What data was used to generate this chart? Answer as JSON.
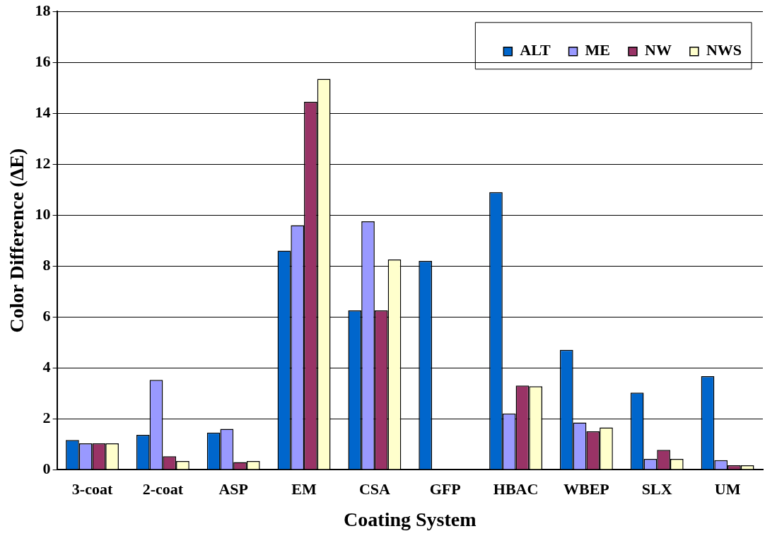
{
  "chart_data": {
    "type": "bar",
    "xlabel": "Coating System",
    "ylabel": "Color Difference (ΔE)",
    "categories": [
      "3-coat",
      "2-coat",
      "ASP",
      "EM",
      "CSA",
      "GFP",
      "HBAC",
      "WBEP",
      "SLX",
      "UM"
    ],
    "series": [
      {
        "name": "ALT",
        "color": "#0066cc",
        "values": [
          1.16,
          1.36,
          1.45,
          8.6,
          6.25,
          8.2,
          10.9,
          4.7,
          3.02,
          3.67
        ]
      },
      {
        "name": "ME",
        "color": "#9999ff",
        "values": [
          1.03,
          3.52,
          1.6,
          9.6,
          9.75,
          0,
          2.2,
          1.85,
          0.42,
          0.37
        ]
      },
      {
        "name": "NW",
        "color": "#993366",
        "values": [
          1.03,
          0.52,
          0.29,
          14.45,
          6.25,
          0,
          3.3,
          1.5,
          0.77,
          0.17
        ]
      },
      {
        "name": "NWS",
        "color": "#ffffcc",
        "values": [
          1.03,
          0.33,
          0.33,
          15.35,
          8.25,
          0,
          3.27,
          1.65,
          0.42,
          0.17
        ]
      }
    ],
    "ylim": [
      0,
      18
    ],
    "yticks": [
      0,
      2,
      4,
      6,
      8,
      10,
      12,
      14,
      16,
      18
    ],
    "grid": "y",
    "legend": "top right"
  }
}
